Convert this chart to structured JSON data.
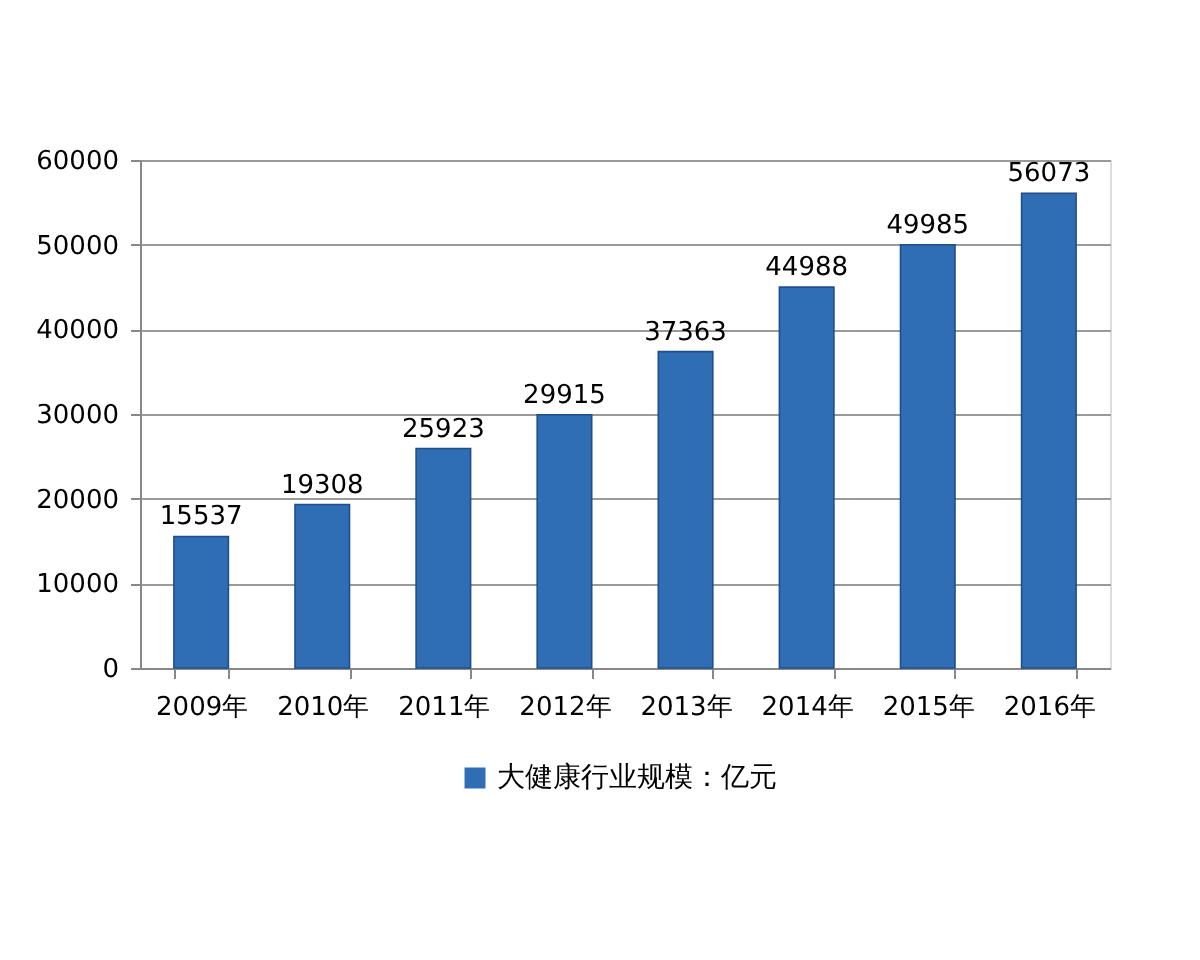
{
  "chart_data": {
    "type": "bar",
    "categories": [
      "2009年",
      "2010年",
      "2011年",
      "2012年",
      "2013年",
      "2014年",
      "2015年",
      "2016年"
    ],
    "series": [
      {
        "name": "大健康行业规模：亿元",
        "color": "#2f6db5",
        "values": [
          15537,
          19308,
          25923,
          29915,
          37363,
          44988,
          49985,
          56073
        ]
      }
    ],
    "ylim": [
      0,
      60000
    ],
    "yticks": [
      0,
      10000,
      20000,
      30000,
      40000,
      50000,
      60000
    ],
    "grid": "y",
    "legend": "bottom",
    "data_labels": true
  }
}
